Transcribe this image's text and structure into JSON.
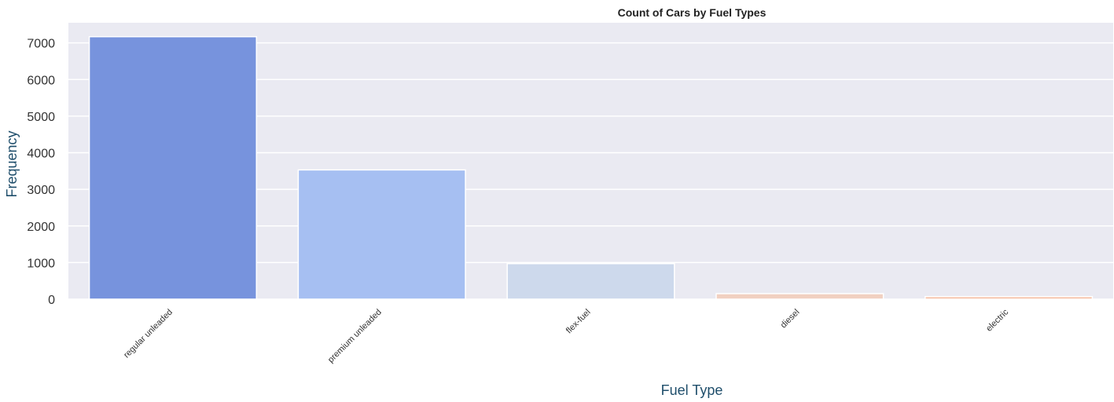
{
  "chart_data": {
    "type": "bar",
    "title": "Count of Cars by Fuel Types",
    "xlabel": "Fuel Type",
    "ylabel": "Frequency",
    "categories": [
      "regular unleaded",
      "premium unleaded",
      "flex-fuel",
      "diesel",
      "electric"
    ],
    "values": [
      7170,
      3530,
      970,
      150,
      70
    ],
    "colors": [
      "#7793dd",
      "#a6bff2",
      "#cdd9ec",
      "#f1d0c1",
      "#f6bfa6"
    ],
    "yticks": [
      0,
      1000,
      2000,
      3000,
      4000,
      5000,
      6000,
      7000
    ],
    "ylim": [
      0,
      7550
    ],
    "grid": true,
    "background": "#eaeaf2",
    "label_color": "#1f4e6b"
  }
}
